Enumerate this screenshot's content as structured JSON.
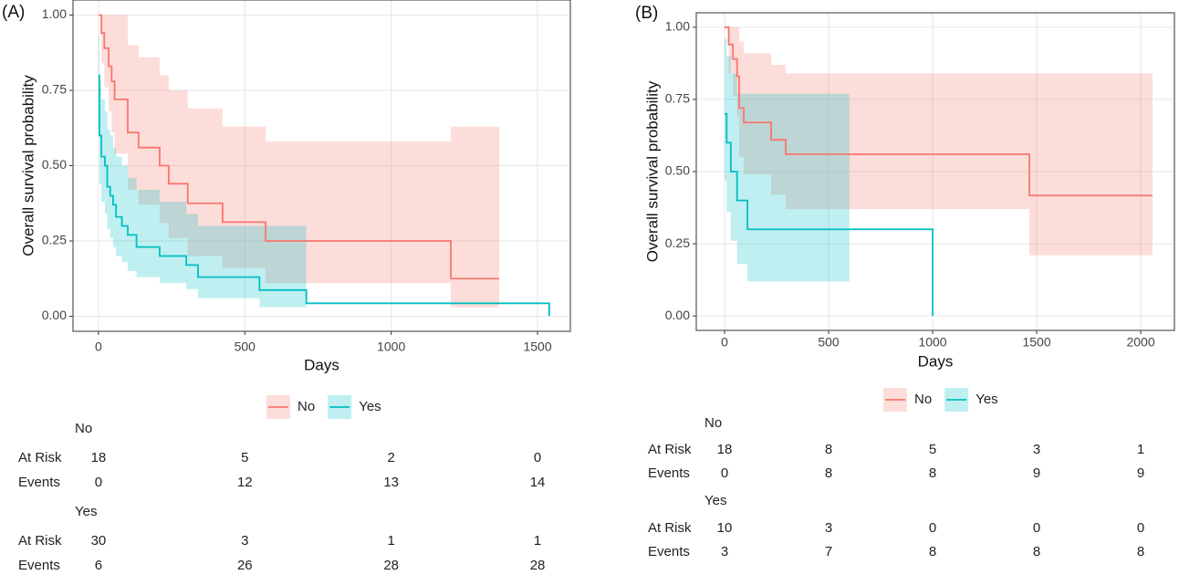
{
  "chart_data": [
    {
      "type": "step",
      "title": "(A)",
      "x_label": "Days",
      "y_label": "Overall survival probability",
      "xlim": [
        -87,
        1612
      ],
      "xticks": [
        0,
        500,
        1000,
        1500
      ],
      "ylim": [
        -0.05,
        1.05
      ],
      "yticks": [
        {
          "value": 0,
          "label": "0.00"
        },
        {
          "value": 0.25,
          "label": "0.25"
        },
        {
          "value": 0.5,
          "label": "0.50"
        },
        {
          "value": 0.75,
          "label": "0.75"
        },
        {
          "value": 1,
          "label": "1.00"
        }
      ],
      "grid": true,
      "series": [
        {
          "name": "No",
          "color": "#F8766D",
          "x": [
            0,
            10,
            20,
            35,
            45,
            55,
            100,
            137,
            209,
            240,
            305,
            424,
            571,
            1204,
            1369
          ],
          "values": [
            1,
            0.94,
            0.89,
            0.83,
            0.78,
            0.72,
            0.61,
            0.56,
            0.5,
            0.44,
            0.375,
            0.3125,
            0.25,
            0.125,
            0.125
          ],
          "upper": [
            1,
            1,
            1,
            1,
            1,
            1,
            0.9,
            0.86,
            0.8,
            0.75,
            0.69,
            0.63,
            0.58,
            0.63,
            0.63
          ],
          "lower": [
            1,
            0.84,
            0.76,
            0.68,
            0.61,
            0.54,
            0.42,
            0.37,
            0.31,
            0.26,
            0.2,
            0.16,
            0.11,
            0.03,
            0.03
          ]
        },
        {
          "name": "Yes",
          "color": "#00BFC4",
          "x": [
            0,
            3,
            10,
            22,
            30,
            40,
            50,
            60,
            80,
            100,
            130,
            209,
            300,
            340,
            550,
            710,
            1540
          ],
          "values": [
            0.8,
            0.6,
            0.53,
            0.5,
            0.43,
            0.4,
            0.37,
            0.33,
            0.3,
            0.27,
            0.23,
            0.2,
            0.17,
            0.13,
            0.087,
            0.043,
            0
          ],
          "upper": [
            0.93,
            0.78,
            0.72,
            0.68,
            0.62,
            0.6,
            0.56,
            0.53,
            0.5,
            0.46,
            0.42,
            0.38,
            0.34,
            0.3,
            0.3,
            0.3,
            null
          ],
          "lower": [
            0.63,
            0.44,
            0.38,
            0.34,
            0.29,
            0.26,
            0.23,
            0.2,
            0.18,
            0.15,
            0.13,
            0.11,
            0.09,
            0.06,
            0.03,
            0.03,
            null
          ]
        }
      ],
      "risk_table": [
        {
          "name": "No",
          "rows": [
            {
              "label": "At Risk",
              "values": [
                18,
                5,
                2,
                0
              ]
            },
            {
              "label": "Events",
              "values": [
                0,
                12,
                13,
                14
              ]
            }
          ]
        },
        {
          "name": "Yes",
          "rows": [
            {
              "label": "At Risk",
              "values": [
                30,
                3,
                1,
                1
              ]
            },
            {
              "label": "Events",
              "values": [
                6,
                26,
                28,
                28
              ]
            }
          ]
        }
      ]
    },
    {
      "type": "step",
      "title": "(B)",
      "x_label": "Days",
      "y_label": "Overall survival probability",
      "xlim": [
        -136,
        2162
      ],
      "xticks": [
        0,
        500,
        1000,
        1500,
        2000
      ],
      "ylim": [
        -0.05,
        1.05
      ],
      "yticks": [
        {
          "value": 0,
          "label": "0.00"
        },
        {
          "value": 0.25,
          "label": "0.25"
        },
        {
          "value": 0.5,
          "label": "0.50"
        },
        {
          "value": 0.75,
          "label": "0.75"
        },
        {
          "value": 1,
          "label": "1.00"
        }
      ],
      "grid": true,
      "series": [
        {
          "name": "No",
          "color": "#F8766D",
          "x": [
            0,
            20,
            40,
            60,
            70,
            92,
            224,
            294,
            1465,
            2057
          ],
          "values": [
            1,
            0.94,
            0.89,
            0.83,
            0.72,
            0.67,
            0.61,
            0.56,
            0.417,
            0.417
          ],
          "upper": [
            1,
            1,
            1,
            1,
            0.95,
            0.91,
            0.87,
            0.84,
            0.84,
            0.84
          ],
          "lower": [
            1,
            0.84,
            0.76,
            0.69,
            0.55,
            0.49,
            0.42,
            0.37,
            0.21,
            0.21
          ]
        },
        {
          "name": "Yes",
          "color": "#00BFC4",
          "x": [
            0,
            10,
            30,
            60,
            110,
            600,
            1000
          ],
          "values": [
            0.7,
            0.6,
            0.5,
            0.4,
            0.3,
            0.3,
            0
          ],
          "upper": [
            0.96,
            0.9,
            0.84,
            0.77,
            0.77,
            0.77,
            null
          ],
          "lower": [
            0.47,
            0.36,
            0.26,
            0.18,
            0.12,
            0.12,
            null
          ]
        }
      ],
      "risk_table": [
        {
          "name": "No",
          "rows": [
            {
              "label": "At Risk",
              "values": [
                18,
                8,
                5,
                3,
                1
              ]
            },
            {
              "label": "Events",
              "values": [
                0,
                8,
                8,
                9,
                9
              ]
            }
          ]
        },
        {
          "name": "Yes",
          "rows": [
            {
              "label": "At Risk",
              "values": [
                10,
                3,
                0,
                0,
                0
              ]
            },
            {
              "label": "Events",
              "values": [
                3,
                7,
                8,
                8,
                8
              ]
            }
          ]
        }
      ]
    }
  ]
}
